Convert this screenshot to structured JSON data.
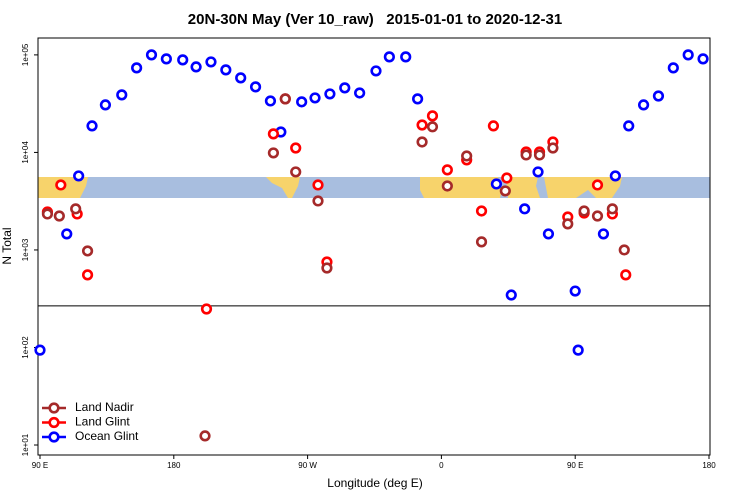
{
  "chart_data": {
    "type": "scatter",
    "title": "20N-30N May (Ver 10_raw)   2015-01-01 to 2020-12-31",
    "x_label": "Longitude (deg E)",
    "y_label": "N Total",
    "log_y": true,
    "legend": "bottom-left",
    "xlim": [
      90,
      540
    ],
    "ylim": [
      7.9,
      149000
    ],
    "xticks": [
      {
        "value": 90,
        "label": "90 E"
      },
      180,
      {
        "value": 270,
        "label": "90 W"
      },
      {
        "value": 360,
        "label": "0"
      },
      {
        "value": 450,
        "label": "90 E"
      },
      {
        "value": 540,
        "label": "180"
      }
    ],
    "yticks": [
      {
        "value": 10,
        "label": "1e+01"
      },
      {
        "value": 100,
        "label": "1e+02"
      },
      {
        "value": 1000,
        "label": "1e+03"
      },
      {
        "value": 10000,
        "label": "1e+04"
      },
      {
        "value": 100000,
        "label": "1e+05"
      }
    ],
    "hline": 267,
    "series": [
      {
        "name": "Land Nadir",
        "color": "#a52a2a",
        "x": [
          95,
          103,
          114,
          122,
          201,
          247,
          255,
          262,
          277,
          283,
          347,
          354,
          364,
          377,
          387,
          403,
          417,
          426,
          435,
          445,
          456,
          465,
          475,
          483
        ],
        "values": [
          2340,
          2230,
          2640,
          977,
          12.4,
          9880,
          35400,
          6310,
          3180,
          653,
          12800,
          18300,
          4530,
          9200,
          1210,
          4030,
          9420,
          9420,
          11100,
          1850,
          2510,
          2230,
          2640,
          1000
        ]
      },
      {
        "name": "Land Glint",
        "color": "#ff0000",
        "x": [
          95,
          104,
          115,
          122,
          202,
          247,
          255,
          262,
          277,
          283,
          347,
          354,
          364,
          377,
          387,
          395,
          404,
          417,
          426,
          435,
          445,
          456,
          465,
          475,
          484
        ],
        "values": [
          2450,
          4640,
          2340,
          555,
          248,
          15500,
          35400,
          11100,
          4640,
          753,
          19100,
          23700,
          6620,
          8380,
          2510,
          18700,
          5470,
          10100,
          10100,
          12800,
          2180,
          2390,
          4640,
          2340,
          555
        ]
      },
      {
        "name": "Ocean Glint",
        "color": "#0000ff",
        "x": [
          90,
          116,
          108,
          125,
          134,
          145,
          155,
          165,
          175,
          186,
          195,
          205,
          215,
          225,
          235,
          245,
          252,
          266,
          275,
          285,
          295,
          305,
          316,
          325,
          336,
          344,
          397,
          407,
          416,
          425,
          432,
          450,
          452,
          469,
          477,
          486,
          496,
          506,
          516,
          526,
          536
        ],
        "values": [
          94,
          5740,
          1460,
          18700,
          30700,
          38900,
          73600,
          100000,
          91000,
          88900,
          75300,
          84700,
          70200,
          58100,
          47000,
          33700,
          16200,
          33000,
          36200,
          39800,
          45900,
          40700,
          68500,
          95400,
          95400,
          35400,
          4750,
          345,
          2640,
          6310,
          1460,
          379,
          94,
          1460,
          5740,
          18700,
          30700,
          37900,
          73600,
          100000,
          91000
        ]
      }
    ]
  }
}
